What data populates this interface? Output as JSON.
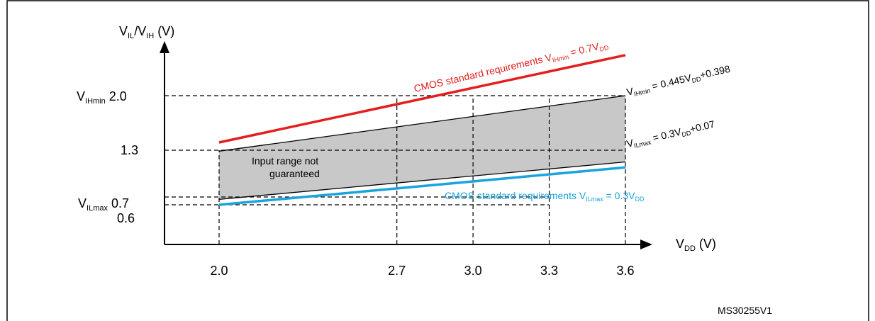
{
  "chart_data": {
    "type": "line",
    "y_axis_label": {
      "main": "V",
      "sub1": "IL",
      "mid": "/V",
      "sub2": "IH",
      "unit": " (V)"
    },
    "x_axis_label": {
      "main": "V",
      "sub": "DD",
      "unit": " (V)"
    },
    "x_ticks": [
      "2.0",
      "2.7",
      "3.0",
      "3.3",
      "3.6"
    ],
    "x_tick_values": [
      2.0,
      2.7,
      3.0,
      3.3,
      3.6
    ],
    "y_ticks": [
      {
        "value": 2.0,
        "main": "V",
        "sub": "IHmin",
        "num": " 2.0"
      },
      {
        "value": 1.3,
        "main": "",
        "sub": "",
        "num": "1.3"
      },
      {
        "value": 0.7,
        "main": "V",
        "sub": "ILmax",
        "num": " 0.7"
      },
      {
        "value": 0.6,
        "main": "",
        "sub": "",
        "num": "0.6"
      }
    ],
    "xlim": [
      1.6,
      3.8
    ],
    "ylim": [
      0.3,
      2.65
    ],
    "series": [
      {
        "key": "cmos_ih",
        "color": "#e41e1e",
        "points": [
          [
            2.0,
            1.4
          ],
          [
            3.6,
            2.52
          ]
        ]
      },
      {
        "key": "cmos_il",
        "color": "#1aa3dc",
        "points": [
          [
            2.0,
            0.6
          ],
          [
            3.6,
            1.08
          ]
        ]
      },
      {
        "key": "vihmin",
        "color": "#000000",
        "points": [
          [
            2.0,
            1.288
          ],
          [
            3.6,
            2.0
          ]
        ]
      },
      {
        "key": "vilmax",
        "color": "#000000",
        "points": [
          [
            2.0,
            0.67
          ],
          [
            3.6,
            1.15
          ]
        ]
      }
    ],
    "shaded_region": {
      "fill": "#c8c8c8",
      "text_line1": "Input range not",
      "text_line2": "guaranteed"
    },
    "dashed_guides": [
      {
        "kind": "h",
        "y": 2.0,
        "x_to": 3.6
      },
      {
        "kind": "h",
        "y": 1.3,
        "x_to": 3.6
      },
      {
        "kind": "h",
        "y": 0.7,
        "x_to": 3.3
      },
      {
        "kind": "h",
        "y": 0.6,
        "x_to": 3.3
      },
      {
        "kind": "v",
        "x": 2.0,
        "y_to": 1.3
      },
      {
        "kind": "v",
        "x": 2.7,
        "y_to": 2.0
      },
      {
        "kind": "v",
        "x": 3.0,
        "y_to": 2.0
      },
      {
        "kind": "v",
        "x": 3.3,
        "y_to": 2.0
      },
      {
        "kind": "v",
        "x": 3.6,
        "y_to": 2.0
      }
    ],
    "annotations": {
      "cmos_ih": {
        "pre": "CMOS standard  requirements V",
        "sub": "IHmin",
        "post": " = 0.7V",
        "sub2": "DD",
        "end": "",
        "color": "#e41e1e"
      },
      "cmos_il": {
        "pre": "CMOS standard  requirements V",
        "sub": "ILmax",
        "post": " = 0.3V",
        "sub2": "DD",
        "end": "",
        "color": "#1aa3dc"
      },
      "vihmin": {
        "pre": "V",
        "sub": "IHmin",
        "post": " = 0.445V",
        "sub2": "DD",
        "end": "+0.398",
        "color": "#000000"
      },
      "vilmax": {
        "pre": "V",
        "sub": "ILmax",
        "post": " = 0.3V",
        "sub2": "DD",
        "end": "+0.07",
        "color": "#000000"
      }
    },
    "figure_id": "MS30255V1"
  }
}
